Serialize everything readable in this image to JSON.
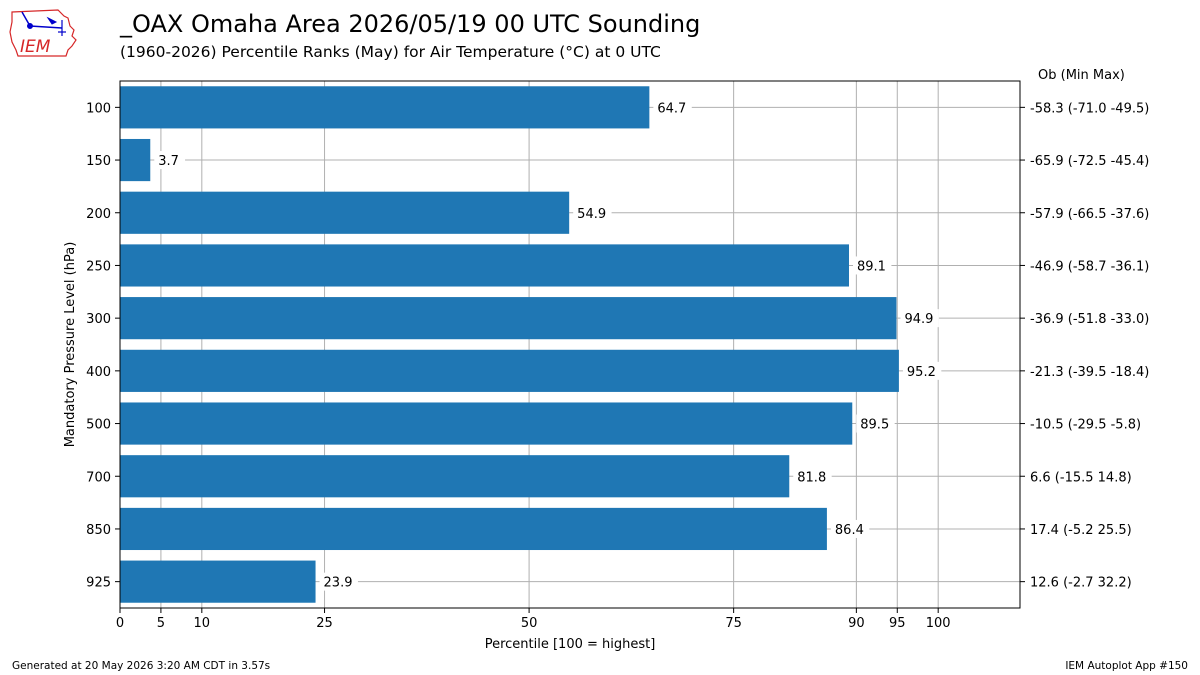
{
  "header": {
    "title": "_OAX Omaha Area  2026/05/19 00 UTC Sounding",
    "subtitle": "(1960-2026) Percentile Ranks (May) for Air Temperature (°C) at 0 UTC",
    "right_header": "Ob  (Min  Max)"
  },
  "logo": {
    "text": "IEM",
    "border_color": "#d62728",
    "icon_color": "#0000cc"
  },
  "footer": {
    "left": "Generated at 20 May 2026 3:20 AM CDT in 3.57s",
    "right": "IEM Autoplot App #150"
  },
  "chart_data": {
    "type": "bar",
    "orientation": "horizontal",
    "categories": [
      "100",
      "150",
      "200",
      "250",
      "300",
      "400",
      "500",
      "700",
      "850",
      "925"
    ],
    "values": [
      64.7,
      3.7,
      54.9,
      89.1,
      94.9,
      95.2,
      89.5,
      81.8,
      86.4,
      23.9
    ],
    "value_labels": [
      "64.7",
      "3.7",
      "54.9",
      "89.1",
      "94.9",
      "95.2",
      "89.5",
      "81.8",
      "86.4",
      "23.9"
    ],
    "right_labels": [
      "-58.3 (-71.0 -49.5)",
      "-65.9 (-72.5 -45.4)",
      "-57.9 (-66.5 -37.6)",
      "-46.9 (-58.7 -36.1)",
      "-36.9 (-51.8 -33.0)",
      "-21.3 (-39.5 -18.4)",
      "-10.5 (-29.5 -5.8)",
      "6.6 (-15.5 14.8)",
      "17.4 (-5.2 25.5)",
      "12.6 (-2.7 32.2)"
    ],
    "xlabel": "Percentile [100 = highest]",
    "ylabel": "Mandatory Pressure Level (hPa)",
    "xlim": [
      0,
      110
    ],
    "xticks": [
      0,
      5,
      10,
      25,
      50,
      75,
      90,
      95,
      100
    ],
    "grid": true,
    "bar_color": "#1f77b4",
    "grid_color": "#b0b0b0"
  }
}
